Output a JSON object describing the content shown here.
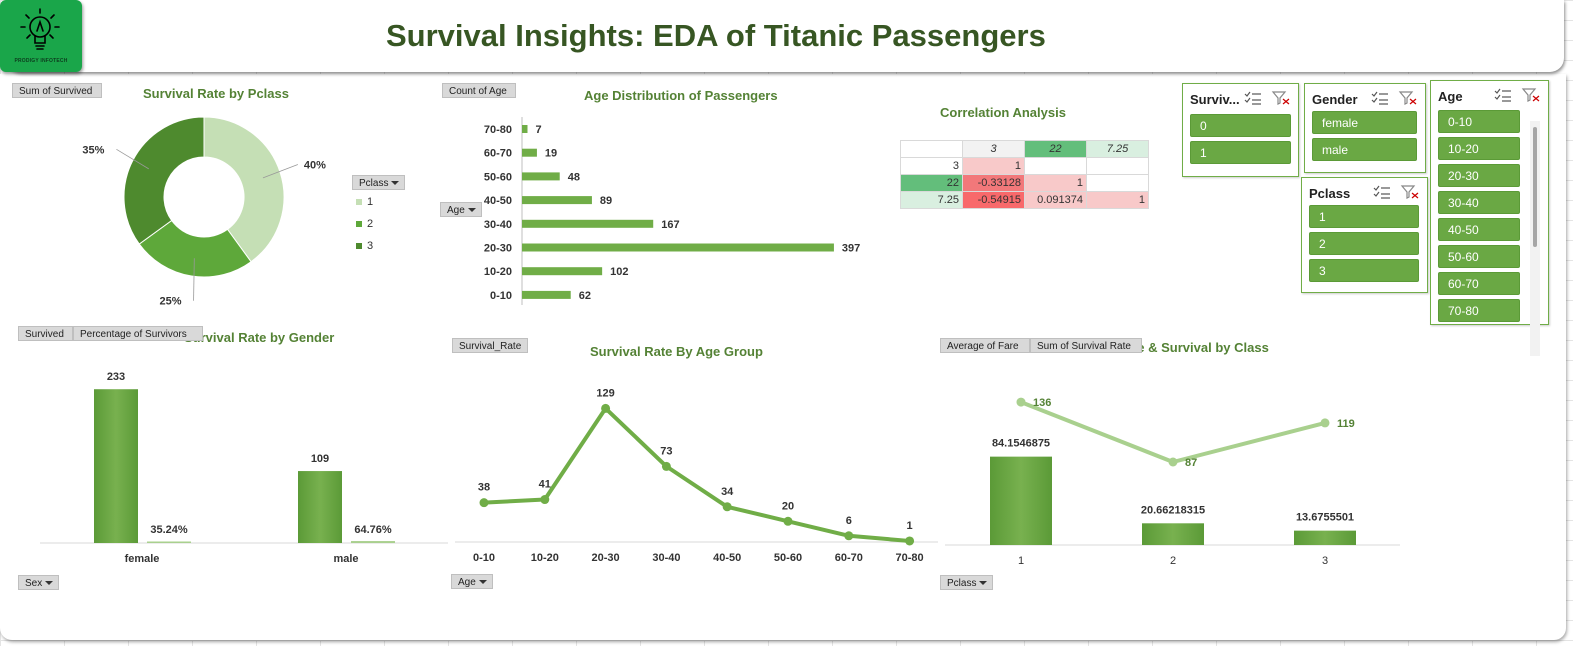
{
  "header": {
    "title": "Survival Insights: EDA of Titanic Passengers",
    "logo_text": "PRODIGY INFOTECH"
  },
  "colors": {
    "accent": "#548235",
    "bar": "#70ad47",
    "dark": "#375623",
    "light": "#a9d08e"
  },
  "icons": {
    "logo": "lightbulb-icon",
    "multiselect": "multi-select-icon",
    "clear": "clear-filter-icon"
  },
  "field_buttons": {
    "pie_value": "Sum of Survived",
    "pie_legend": "Pclass",
    "age_value": "Count of Age",
    "age_axis": "Age",
    "gender_series1": "Survived",
    "gender_series2": "Percentage of Survivors",
    "gender_axis": "Sex",
    "agegroup_value": "Survival_Rate",
    "agegroup_axis": "Age",
    "fare_series1": "Average of Fare",
    "fare_series2": "Sum of Survival Rate",
    "fare_axis": "Pclass"
  },
  "chart_data": [
    {
      "type": "pie",
      "title": "Survival Rate by Pclass",
      "categories": [
        "1",
        "2",
        "3"
      ],
      "values": [
        40,
        25,
        35
      ],
      "labels": [
        "40%",
        "25%",
        "35%"
      ],
      "donut": true,
      "legend": "right",
      "legend_title": "Pclass"
    },
    {
      "type": "bar",
      "orientation": "horizontal",
      "title": "Age Distribution of Passengers",
      "categories": [
        "0-10",
        "10-20",
        "20-30",
        "30-40",
        "40-50",
        "50-60",
        "60-70",
        "70-80"
      ],
      "values": [
        62,
        102,
        397,
        167,
        89,
        48,
        19,
        7
      ],
      "xlim": [
        0,
        420
      ]
    },
    {
      "type": "table",
      "title": "Correlation Analysis",
      "header": [
        "",
        "3",
        "22",
        "7.25"
      ],
      "rows": [
        [
          "3",
          "1",
          "",
          ""
        ],
        [
          "22",
          "-0.33128",
          "1",
          ""
        ],
        [
          "7.25",
          "-0.54915",
          "0.091374",
          "1"
        ]
      ]
    },
    {
      "type": "bar",
      "title": "Survival Rate by Gender",
      "categories": [
        "female",
        "male"
      ],
      "series": [
        {
          "name": "Survived",
          "values": [
            233,
            109
          ],
          "labels": [
            "233",
            "109"
          ]
        },
        {
          "name": "Percentage of Survivors",
          "values": [
            0.3524,
            0.6476
          ],
          "labels": [
            "35.24%",
            "64.76%"
          ]
        }
      ],
      "ylim": [
        0,
        250
      ]
    },
    {
      "type": "line",
      "title": "Survival Rate By Age Group",
      "categories": [
        "0-10",
        "10-20",
        "20-30",
        "30-40",
        "40-50",
        "50-60",
        "60-70",
        "70-80"
      ],
      "values": [
        38,
        41,
        129,
        73,
        34,
        20,
        6,
        1
      ],
      "ylim": [
        0,
        140
      ]
    },
    {
      "type": "bar",
      "title": "Average Fare & Survival by Class",
      "categories": [
        "1",
        "2",
        "3"
      ],
      "series": [
        {
          "name": "Average of Fare",
          "type": "bar",
          "values": [
            84.1546875,
            20.66218315,
            13.6755501
          ],
          "labels": [
            "84.1546875",
            "20.66218315",
            "13.6755501"
          ]
        },
        {
          "name": "Sum of Survival Rate",
          "type": "line",
          "values": [
            136,
            87,
            119
          ],
          "labels": [
            "136",
            "87",
            "119"
          ]
        }
      ],
      "ylim": [
        0,
        100
      ]
    }
  ],
  "slicers": {
    "survived": {
      "title": "Surviv...",
      "items": [
        "0",
        "1"
      ]
    },
    "gender": {
      "title": "Gender",
      "items": [
        "female",
        "male"
      ]
    },
    "pclass": {
      "title": "Pclass",
      "items": [
        "1",
        "2",
        "3"
      ]
    },
    "age": {
      "title": "Age",
      "items": [
        "0-10",
        "10-20",
        "20-30",
        "30-40",
        "40-50",
        "50-60",
        "60-70",
        "70-80"
      ]
    }
  }
}
